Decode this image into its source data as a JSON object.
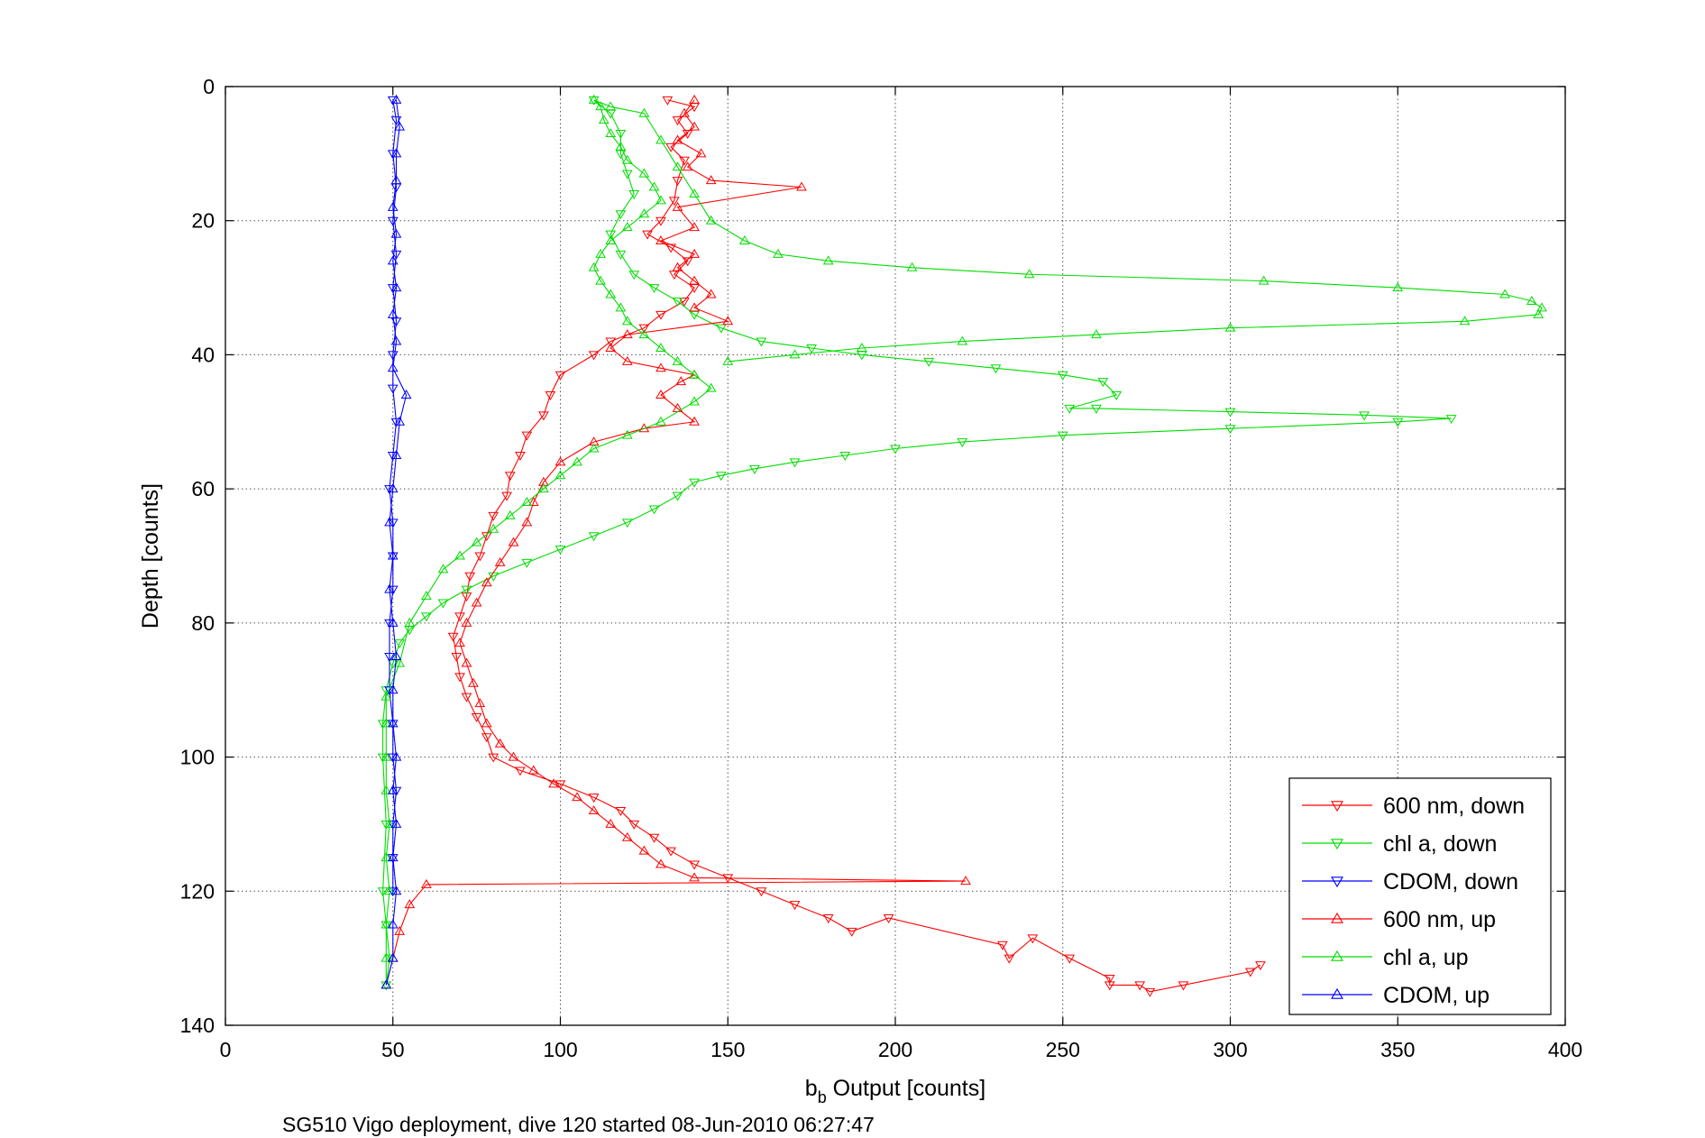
{
  "caption": "SG510 Vigo deployment, dive 120 started 08-Jun-2010 06:27:47",
  "chart_data": {
    "type": "line",
    "xlabel_main": "b",
    "xlabel_sub": "b",
    "xlabel_rest": " Output [counts]",
    "ylabel": "Depth [counts]",
    "xlim": [
      0,
      400
    ],
    "ylim": [
      0,
      140
    ],
    "y_reversed": true,
    "xticks": [
      0,
      50,
      100,
      150,
      200,
      250,
      300,
      350,
      400
    ],
    "yticks": [
      0,
      20,
      40,
      60,
      80,
      100,
      120,
      140
    ],
    "grid": true,
    "legend_position": "bottom-right",
    "series": [
      {
        "name": "600 nm, down",
        "color": "#ff0000",
        "marker": "triangle-down",
        "points": [
          [
            132,
            2
          ],
          [
            140,
            3
          ],
          [
            135,
            5
          ],
          [
            138,
            7
          ],
          [
            133,
            9
          ],
          [
            137,
            11
          ],
          [
            135,
            14
          ],
          [
            134,
            17
          ],
          [
            130,
            20
          ],
          [
            126,
            22
          ],
          [
            133,
            24
          ],
          [
            138,
            26
          ],
          [
            134,
            28
          ],
          [
            140,
            30
          ],
          [
            137,
            32
          ],
          [
            130,
            34
          ],
          [
            125,
            36
          ],
          [
            115,
            38
          ],
          [
            110,
            40
          ],
          [
            100,
            43
          ],
          [
            97,
            46
          ],
          [
            95,
            49
          ],
          [
            90,
            52
          ],
          [
            88,
            55
          ],
          [
            85,
            58
          ],
          [
            84,
            61
          ],
          [
            80,
            64
          ],
          [
            78,
            67
          ],
          [
            76,
            70
          ],
          [
            73,
            73
          ],
          [
            72,
            76
          ],
          [
            70,
            79
          ],
          [
            68,
            82
          ],
          [
            69,
            85
          ],
          [
            70,
            88
          ],
          [
            72,
            91
          ],
          [
            75,
            94
          ],
          [
            78,
            97
          ],
          [
            80,
            100
          ],
          [
            88,
            102
          ],
          [
            100,
            104
          ],
          [
            110,
            106
          ],
          [
            118,
            108
          ],
          [
            122,
            110
          ],
          [
            128,
            112
          ],
          [
            133,
            114
          ],
          [
            140,
            116
          ],
          [
            150,
            118
          ],
          [
            160,
            120
          ],
          [
            170,
            122
          ],
          [
            180,
            124
          ],
          [
            187,
            126
          ],
          [
            198,
            124
          ],
          [
            232,
            128
          ],
          [
            234,
            130
          ],
          [
            241,
            127
          ],
          [
            252,
            130
          ],
          [
            264,
            133
          ],
          [
            264,
            134
          ],
          [
            273,
            134
          ],
          [
            276,
            135
          ],
          [
            286,
            134
          ],
          [
            306,
            132
          ],
          [
            309,
            131
          ]
        ]
      },
      {
        "name": "chl a, down",
        "color": "#00dd00",
        "marker": "triangle-down",
        "points": [
          [
            110,
            2
          ],
          [
            115,
            4
          ],
          [
            118,
            7
          ],
          [
            118,
            10
          ],
          [
            120,
            13
          ],
          [
            122,
            16
          ],
          [
            118,
            19
          ],
          [
            115,
            22
          ],
          [
            118,
            25
          ],
          [
            122,
            28
          ],
          [
            128,
            30
          ],
          [
            135,
            32
          ],
          [
            140,
            34
          ],
          [
            148,
            36
          ],
          [
            160,
            38
          ],
          [
            175,
            39
          ],
          [
            190,
            40
          ],
          [
            210,
            41
          ],
          [
            230,
            42
          ],
          [
            250,
            43
          ],
          [
            262,
            44
          ],
          [
            266,
            46
          ],
          [
            252,
            48
          ],
          [
            260,
            48
          ],
          [
            300,
            48.5
          ],
          [
            340,
            49
          ],
          [
            366,
            49.5
          ],
          [
            350,
            50
          ],
          [
            300,
            51
          ],
          [
            250,
            52
          ],
          [
            220,
            53
          ],
          [
            200,
            54
          ],
          [
            185,
            55
          ],
          [
            170,
            56
          ],
          [
            158,
            57
          ],
          [
            148,
            58
          ],
          [
            140,
            59
          ],
          [
            135,
            61
          ],
          [
            128,
            63
          ],
          [
            120,
            65
          ],
          [
            110,
            67
          ],
          [
            100,
            69
          ],
          [
            90,
            71
          ],
          [
            80,
            73
          ],
          [
            72,
            75
          ],
          [
            65,
            77
          ],
          [
            60,
            79
          ],
          [
            55,
            81
          ],
          [
            52,
            83
          ],
          [
            50,
            86
          ],
          [
            48,
            90
          ],
          [
            47,
            95
          ],
          [
            47,
            100
          ],
          [
            48,
            110
          ],
          [
            47,
            120
          ],
          [
            48,
            125
          ],
          [
            49,
            130
          ],
          [
            48,
            134
          ]
        ]
      },
      {
        "name": "CDOM, down",
        "color": "#0000ff",
        "marker": "triangle-down",
        "points": [
          [
            50,
            2
          ],
          [
            51,
            5
          ],
          [
            50,
            10
          ],
          [
            51,
            15
          ],
          [
            50,
            20
          ],
          [
            51,
            25
          ],
          [
            50,
            30
          ],
          [
            51,
            35
          ],
          [
            50,
            40
          ],
          [
            50,
            45
          ],
          [
            51,
            50
          ],
          [
            50,
            55
          ],
          [
            49,
            60
          ],
          [
            50,
            65
          ],
          [
            50,
            70
          ],
          [
            50,
            75
          ],
          [
            49,
            80
          ],
          [
            49,
            85
          ],
          [
            49,
            90
          ],
          [
            50,
            95
          ],
          [
            50,
            100
          ],
          [
            51,
            105
          ],
          [
            50,
            110
          ],
          [
            50,
            115
          ],
          [
            50,
            120
          ]
        ]
      },
      {
        "name": "600 nm, up",
        "color": "#ff0000",
        "marker": "triangle-up",
        "points": [
          [
            48,
            134
          ],
          [
            50,
            130
          ],
          [
            52,
            126
          ],
          [
            55,
            122
          ],
          [
            60,
            119
          ],
          [
            221,
            118.5
          ],
          [
            140,
            118
          ],
          [
            130,
            116
          ],
          [
            125,
            114
          ],
          [
            120,
            112
          ],
          [
            115,
            110
          ],
          [
            110,
            108
          ],
          [
            105,
            106
          ],
          [
            98,
            104
          ],
          [
            92,
            102
          ],
          [
            86,
            100
          ],
          [
            82,
            98
          ],
          [
            78,
            95
          ],
          [
            76,
            92
          ],
          [
            74,
            89
          ],
          [
            72,
            86
          ],
          [
            70,
            83
          ],
          [
            72,
            80
          ],
          [
            75,
            77
          ],
          [
            78,
            74
          ],
          [
            82,
            71
          ],
          [
            86,
            68
          ],
          [
            90,
            65
          ],
          [
            92,
            62
          ],
          [
            95,
            59
          ],
          [
            100,
            56
          ],
          [
            110,
            53
          ],
          [
            125,
            51
          ],
          [
            140,
            50
          ],
          [
            135,
            48
          ],
          [
            130,
            46
          ],
          [
            136,
            44
          ],
          [
            140,
            43
          ],
          [
            130,
            42
          ],
          [
            120,
            41
          ],
          [
            115,
            39
          ],
          [
            120,
            37
          ],
          [
            150,
            35
          ],
          [
            140,
            33
          ],
          [
            145,
            31
          ],
          [
            140,
            29
          ],
          [
            135,
            27
          ],
          [
            140,
            25
          ],
          [
            130,
            23
          ],
          [
            140,
            21
          ],
          [
            135,
            18
          ],
          [
            172,
            15
          ],
          [
            145,
            14
          ],
          [
            138,
            12
          ],
          [
            142,
            10
          ],
          [
            135,
            8
          ],
          [
            140,
            6
          ],
          [
            137,
            4
          ],
          [
            140,
            2
          ]
        ]
      },
      {
        "name": "chl a, up",
        "color": "#00dd00",
        "marker": "triangle-up",
        "points": [
          [
            48,
            134
          ],
          [
            48,
            130
          ],
          [
            48,
            125
          ],
          [
            49,
            120
          ],
          [
            48,
            115
          ],
          [
            49,
            110
          ],
          [
            48,
            105
          ],
          [
            48,
            100
          ],
          [
            48,
            95
          ],
          [
            48,
            91
          ],
          [
            52,
            86
          ],
          [
            55,
            80
          ],
          [
            60,
            76
          ],
          [
            65,
            72
          ],
          [
            70,
            70
          ],
          [
            75,
            68
          ],
          [
            80,
            66
          ],
          [
            85,
            64
          ],
          [
            90,
            62
          ],
          [
            95,
            60
          ],
          [
            100,
            58
          ],
          [
            105,
            56
          ],
          [
            110,
            54
          ],
          [
            120,
            52
          ],
          [
            130,
            50
          ],
          [
            140,
            47
          ],
          [
            145,
            45
          ],
          [
            140,
            43
          ],
          [
            135,
            41
          ],
          [
            130,
            39
          ],
          [
            125,
            37
          ],
          [
            120,
            35
          ],
          [
            118,
            33
          ],
          [
            115,
            31
          ],
          [
            112,
            29
          ],
          [
            110,
            27
          ],
          [
            112,
            25
          ],
          [
            115,
            23
          ],
          [
            120,
            21
          ],
          [
            125,
            19
          ],
          [
            130,
            17
          ],
          [
            128,
            15
          ],
          [
            125,
            13
          ],
          [
            120,
            11
          ],
          [
            118,
            9
          ],
          [
            115,
            7
          ],
          [
            113,
            5
          ],
          [
            112,
            3
          ],
          [
            110,
            2
          ],
          [
            115,
            3
          ],
          [
            125,
            4
          ],
          [
            130,
            8
          ],
          [
            135,
            12
          ],
          [
            140,
            16
          ],
          [
            145,
            20
          ],
          [
            155,
            23
          ],
          [
            165,
            25
          ],
          [
            180,
            26
          ],
          [
            205,
            27
          ],
          [
            240,
            28
          ],
          [
            310,
            29
          ],
          [
            350,
            30
          ],
          [
            382,
            31
          ],
          [
            390,
            32
          ],
          [
            393,
            33
          ],
          [
            392,
            34
          ],
          [
            370,
            35
          ],
          [
            300,
            36
          ],
          [
            260,
            37
          ],
          [
            220,
            38
          ],
          [
            190,
            39
          ],
          [
            170,
            40
          ],
          [
            150,
            41
          ]
        ]
      },
      {
        "name": "CDOM, up",
        "color": "#0000ff",
        "marker": "triangle-up",
        "points": [
          [
            48,
            134
          ],
          [
            50,
            130
          ],
          [
            50,
            125
          ],
          [
            51,
            120
          ],
          [
            50,
            115
          ],
          [
            51,
            110
          ],
          [
            50,
            105
          ],
          [
            51,
            100
          ],
          [
            50,
            95
          ],
          [
            50,
            90
          ],
          [
            51,
            85
          ],
          [
            50,
            80
          ],
          [
            49,
            75
          ],
          [
            50,
            70
          ],
          [
            49,
            65
          ],
          [
            50,
            60
          ],
          [
            51,
            55
          ],
          [
            52,
            50
          ],
          [
            54,
            46
          ],
          [
            50,
            42
          ],
          [
            51,
            38
          ],
          [
            50,
            34
          ],
          [
            51,
            30
          ],
          [
            50,
            26
          ],
          [
            51,
            22
          ],
          [
            50,
            18
          ],
          [
            51,
            14
          ],
          [
            51,
            10
          ],
          [
            52,
            6
          ],
          [
            51,
            2
          ]
        ]
      }
    ]
  }
}
